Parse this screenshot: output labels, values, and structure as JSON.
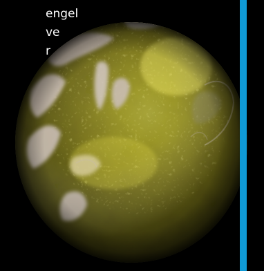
{
  "caption": {
    "line1": "engel",
    "line2": "ve",
    "line3": "r"
  },
  "colors": {
    "background": "#000000",
    "divider": "#0f9ad6",
    "text": "#ffffff",
    "planet_base": "#6f6a15",
    "planet_highlight": "#e6e143",
    "cloud": "#cfc4bf"
  },
  "image": {
    "subject": "planet"
  }
}
